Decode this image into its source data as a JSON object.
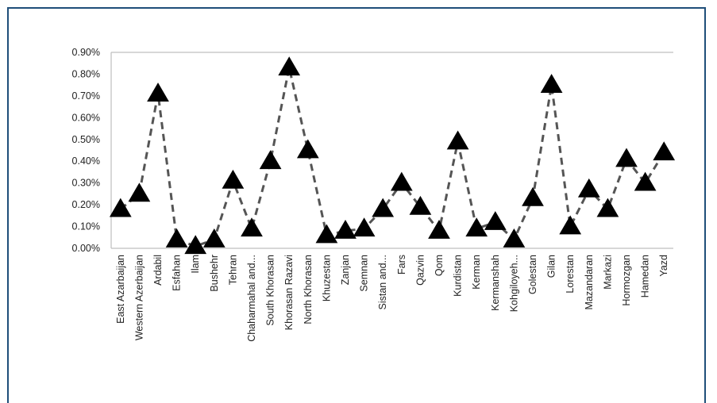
{
  "chart_data": {
    "type": "line",
    "title": "",
    "xlabel": "",
    "ylabel": "",
    "ylim": [
      0,
      0.009
    ],
    "grid": false,
    "legend": "none",
    "y_ticks": [
      "0.00%",
      "0.10%",
      "0.20%",
      "0.30%",
      "0.40%",
      "0.50%",
      "0.60%",
      "0.70%",
      "0.80%",
      "0.90%"
    ],
    "categories": [
      "East Azarbaijan",
      "Western Azerbaijan",
      "Ardabil",
      "Esfahan",
      "Ilam",
      "Bushehr",
      "Tehran",
      "Chaharmahal and...",
      "South Khorasan",
      "Khorasan Razavi",
      "North Khorasan",
      "Khuzestan",
      "Zanjan",
      "Semnan",
      "Sistan and...",
      "Fars",
      "Qazvin",
      "Qom",
      "Kurdistan",
      "Kerman",
      "Kermanshah",
      "Kohgiloyeh...",
      "Golestan",
      "Gilan",
      "Lorestan",
      "Mazandaran",
      "Markazi",
      "Hormozgan",
      "Hamedan",
      "Yazd"
    ],
    "series": [
      {
        "values": [
          0.0018,
          0.0025,
          0.0071,
          0.0004,
          0.0001,
          0.0004,
          0.0031,
          0.0009,
          0.004,
          0.0083,
          0.0045,
          0.0006,
          0.0008,
          0.0009,
          0.0018,
          0.003,
          0.0019,
          0.0008,
          0.0049,
          0.0009,
          0.0012,
          0.0004,
          0.0023,
          0.0075,
          0.001,
          0.0027,
          0.0018,
          0.0041,
          0.003,
          0.0044
        ],
        "marker": "triangle",
        "line_style": "dashed",
        "color": "#000000"
      }
    ]
  }
}
